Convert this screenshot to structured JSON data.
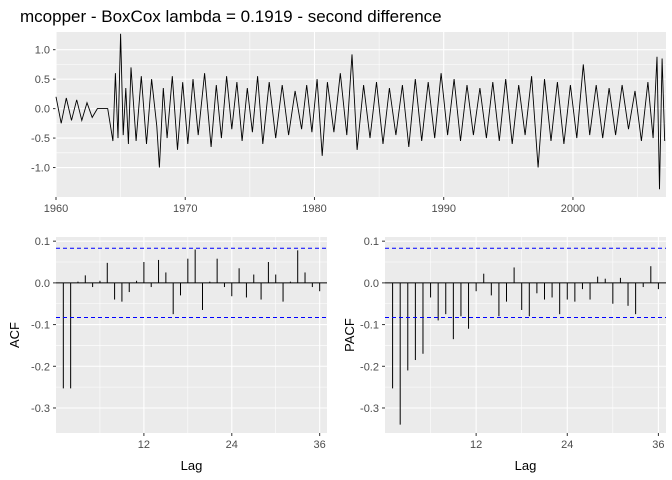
{
  "chart_data": [
    {
      "type": "line",
      "title": "mcopper - BoxCox lambda =  0.1919  - second difference",
      "xlabel": "",
      "ylabel": "",
      "xlim": [
        1960,
        2007.2
      ],
      "ylim": [
        -1.5,
        1.3
      ],
      "x_ticks": [
        1960,
        1970,
        1980,
        1990,
        2000
      ],
      "x_tick_labels": [
        "1960",
        "1970",
        "1980",
        "1990",
        "2000"
      ],
      "y_ticks": [
        -1.0,
        -0.5,
        0.0,
        0.5,
        1.0
      ],
      "y_tick_labels": [
        "-1.0",
        "-0.5",
        "0.0",
        "0.5",
        "1.0"
      ],
      "grid": true,
      "series": [
        {
          "x": [
            1960.0,
            1960.4,
            1960.8,
            1961.2,
            1961.6,
            1962.0,
            1962.4,
            1962.8,
            1963.2,
            1963.6,
            1964.0,
            1964.4,
            1964.6,
            1964.8,
            1965.0,
            1965.2,
            1965.4,
            1965.6,
            1965.8,
            1966.2,
            1966.6,
            1967.0,
            1967.4,
            1967.8,
            1968.0,
            1968.3,
            1968.6,
            1969.0,
            1969.4,
            1969.8,
            1970.2,
            1970.6,
            1971.0,
            1971.5,
            1972.0,
            1972.4,
            1972.8,
            1973.2,
            1973.6,
            1974.0,
            1974.4,
            1974.8,
            1975.2,
            1975.6,
            1976.0,
            1976.5,
            1977.0,
            1977.5,
            1978.0,
            1978.5,
            1979.0,
            1979.4,
            1979.8,
            1980.2,
            1980.6,
            1981.0,
            1981.5,
            1982.0,
            1982.5,
            1982.9,
            1983.3,
            1983.8,
            1984.3,
            1984.8,
            1985.3,
            1985.8,
            1986.3,
            1986.8,
            1987.3,
            1987.8,
            1988.3,
            1988.8,
            1989.3,
            1989.8,
            1990.3,
            1990.8,
            1991.3,
            1991.8,
            1992.3,
            1992.8,
            1993.3,
            1993.8,
            1994.3,
            1994.8,
            1995.3,
            1995.8,
            1996.3,
            1996.8,
            1997.3,
            1997.8,
            1998.3,
            1998.8,
            1999.3,
            1999.8,
            2000.3,
            2000.8,
            2001.3,
            2001.8,
            2002.3,
            2002.8,
            2003.3,
            2003.8,
            2004.3,
            2004.8,
            2005.3,
            2005.8,
            2006.2,
            2006.5,
            2006.7,
            2006.9,
            2007.1
          ],
          "values": [
            0.2,
            -0.25,
            0.18,
            -0.2,
            0.15,
            -0.2,
            0.1,
            -0.15,
            0.0,
            0.0,
            0.0,
            -0.55,
            0.6,
            -0.5,
            1.27,
            -0.45,
            0.35,
            -0.6,
            0.7,
            -0.55,
            0.55,
            -0.6,
            0.5,
            -0.3,
            -1.0,
            0.35,
            -0.5,
            0.55,
            -0.7,
            0.45,
            -0.6,
            0.5,
            -0.45,
            0.6,
            -0.65,
            0.4,
            -0.5,
            0.55,
            -0.35,
            0.45,
            -0.55,
            0.35,
            -0.4,
            0.55,
            -0.6,
            0.45,
            -0.5,
            0.4,
            -0.45,
            0.3,
            -0.35,
            0.4,
            -0.4,
            0.5,
            -0.8,
            0.45,
            -0.4,
            0.6,
            -0.45,
            0.92,
            -0.7,
            0.4,
            -0.5,
            0.45,
            -0.6,
            0.35,
            -0.45,
            0.4,
            -0.65,
            0.5,
            -0.55,
            0.45,
            -0.5,
            0.6,
            -0.45,
            0.5,
            -0.55,
            0.4,
            -0.45,
            0.35,
            -0.5,
            0.45,
            -0.55,
            0.5,
            -0.6,
            0.4,
            -0.45,
            0.55,
            -1.0,
            0.5,
            -0.55,
            0.45,
            -0.6,
            0.4,
            -0.5,
            0.75,
            -0.45,
            0.4,
            -0.5,
            0.35,
            -0.45,
            0.4,
            -0.35,
            0.3,
            -0.55,
            0.45,
            -0.5,
            0.88,
            -1.37,
            0.85,
            -0.55
          ]
        }
      ]
    },
    {
      "type": "bar",
      "xlabel": "Lag",
      "ylabel": "ACF",
      "xlim": [
        0,
        37
      ],
      "ylim": [
        -0.36,
        0.11
      ],
      "x_ticks": [
        12,
        24,
        36
      ],
      "x_tick_labels": [
        "12",
        "24",
        "36"
      ],
      "y_ticks": [
        -0.3,
        -0.2,
        -0.1,
        0.0,
        0.1
      ],
      "y_tick_labels": [
        "-0.3",
        "-0.2",
        "-0.1",
        "0.0",
        "0.1"
      ],
      "significance_bound": 0.083,
      "grid": true,
      "series": [
        {
          "x": [
            1,
            2,
            3,
            4,
            5,
            6,
            7,
            8,
            9,
            10,
            11,
            12,
            13,
            14,
            15,
            16,
            17,
            18,
            19,
            20,
            21,
            22,
            23,
            24,
            25,
            26,
            27,
            28,
            29,
            30,
            31,
            32,
            33,
            34,
            35,
            36
          ],
          "values": [
            -0.253,
            -0.253,
            0.003,
            0.018,
            -0.01,
            0.005,
            0.048,
            -0.04,
            -0.045,
            -0.022,
            0.005,
            0.05,
            -0.01,
            0.055,
            0.025,
            -0.075,
            -0.03,
            0.058,
            0.08,
            -0.065,
            0.003,
            0.058,
            -0.01,
            -0.032,
            0.035,
            -0.035,
            0.02,
            -0.04,
            0.05,
            0.02,
            -0.045,
            0.003,
            0.078,
            0.025,
            -0.01,
            -0.02
          ]
        }
      ]
    },
    {
      "type": "bar",
      "xlabel": "Lag",
      "ylabel": "PACF",
      "xlim": [
        0,
        37
      ],
      "ylim": [
        -0.36,
        0.11
      ],
      "x_ticks": [
        12,
        24,
        36
      ],
      "x_tick_labels": [
        "12",
        "24",
        "36"
      ],
      "y_ticks": [
        -0.3,
        -0.2,
        -0.1,
        0.0,
        0.1
      ],
      "y_tick_labels": [
        "-0.3",
        "-0.2",
        "-0.1",
        "0.0",
        "0.1"
      ],
      "significance_bound": 0.083,
      "grid": true,
      "series": [
        {
          "x": [
            1,
            2,
            3,
            4,
            5,
            6,
            7,
            8,
            9,
            10,
            11,
            12,
            13,
            14,
            15,
            16,
            17,
            18,
            19,
            20,
            21,
            22,
            23,
            24,
            25,
            26,
            27,
            28,
            29,
            30,
            31,
            32,
            33,
            34,
            35,
            36
          ],
          "values": [
            -0.253,
            -0.34,
            -0.21,
            -0.185,
            -0.17,
            -0.035,
            -0.09,
            -0.075,
            -0.135,
            -0.08,
            -0.11,
            -0.02,
            0.022,
            -0.03,
            -0.08,
            -0.045,
            0.037,
            -0.065,
            -0.08,
            -0.025,
            -0.04,
            -0.035,
            -0.075,
            -0.04,
            -0.045,
            -0.015,
            -0.04,
            0.015,
            0.01,
            -0.05,
            0.012,
            -0.055,
            -0.075,
            -0.01,
            0.04,
            -0.015
          ]
        }
      ]
    }
  ]
}
